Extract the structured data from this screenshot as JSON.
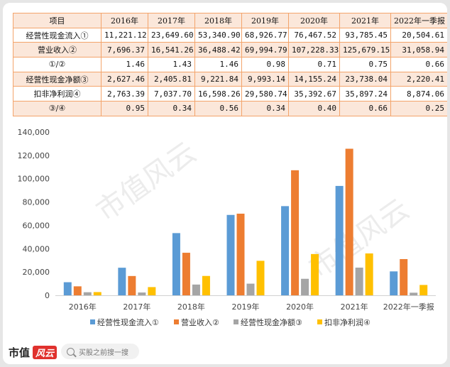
{
  "table": {
    "headers": [
      "项目",
      "2016年",
      "2017年",
      "2018年",
      "2019年",
      "2020年",
      "2021年",
      "2022年一季报"
    ],
    "rows": [
      {
        "label": "经营性现金流入①",
        "values": [
          "11,221.12",
          "23,649.60",
          "53,340.90",
          "68,926.77",
          "76,467.52",
          "93,785.45",
          "20,504.61"
        ]
      },
      {
        "label": "营业收入②",
        "values": [
          "7,696.37",
          "16,541.26",
          "36,488.42",
          "69,994.79",
          "107,228.33",
          "125,679.15",
          "31,058.94"
        ]
      },
      {
        "label": "①/②",
        "values": [
          "1.46",
          "1.43",
          "1.46",
          "0.98",
          "0.71",
          "0.75",
          "0.66"
        ]
      },
      {
        "label": "经营性现金净额③",
        "values": [
          "2,627.46",
          "2,405.81",
          "9,221.84",
          "9,993.14",
          "14,155.24",
          "23,738.04",
          "2,220.41"
        ]
      },
      {
        "label": "扣非净利润④",
        "values": [
          "2,763.39",
          "7,037.70",
          "16,598.26",
          "29,580.74",
          "35,392.67",
          "35,897.24",
          "8,874.06"
        ]
      },
      {
        "label": "③/④",
        "values": [
          "0.95",
          "0.34",
          "0.56",
          "0.34",
          "0.40",
          "0.66",
          "0.25"
        ]
      }
    ]
  },
  "chart_data": {
    "type": "bar",
    "categories": [
      "2016年",
      "2017年",
      "2018年",
      "2019年",
      "2020年",
      "2021年",
      "2022年一季报"
    ],
    "series": [
      {
        "name": "经营性现金流入①",
        "color": "#5b9bd5",
        "values": [
          11221.12,
          23649.6,
          53340.9,
          68926.77,
          76467.52,
          93785.45,
          20504.61
        ]
      },
      {
        "name": "营业收入②",
        "color": "#ed7d31",
        "values": [
          7696.37,
          16541.26,
          36488.42,
          69994.79,
          107228.33,
          125679.15,
          31058.94
        ]
      },
      {
        "name": "经营性现金净额③",
        "color": "#a5a5a5",
        "values": [
          2627.46,
          2405.81,
          9221.84,
          9993.14,
          14155.24,
          23738.04,
          2220.41
        ]
      },
      {
        "name": "扣非净利润④",
        "color": "#ffc000",
        "values": [
          2763.39,
          7037.7,
          16598.26,
          29580.74,
          35392.67,
          35897.24,
          8874.06
        ]
      }
    ],
    "yticks": [
      "0",
      "20,000",
      "40,000",
      "60,000",
      "80,000",
      "100,000",
      "120,000",
      "140,000"
    ],
    "ylim": [
      0,
      140000
    ],
    "grid": false,
    "legend_position": "bottom"
  },
  "watermark": "市值风云",
  "footer": {
    "brand": "市值",
    "brand_logo": "风云",
    "search_placeholder": "买股之前搜一搜"
  }
}
